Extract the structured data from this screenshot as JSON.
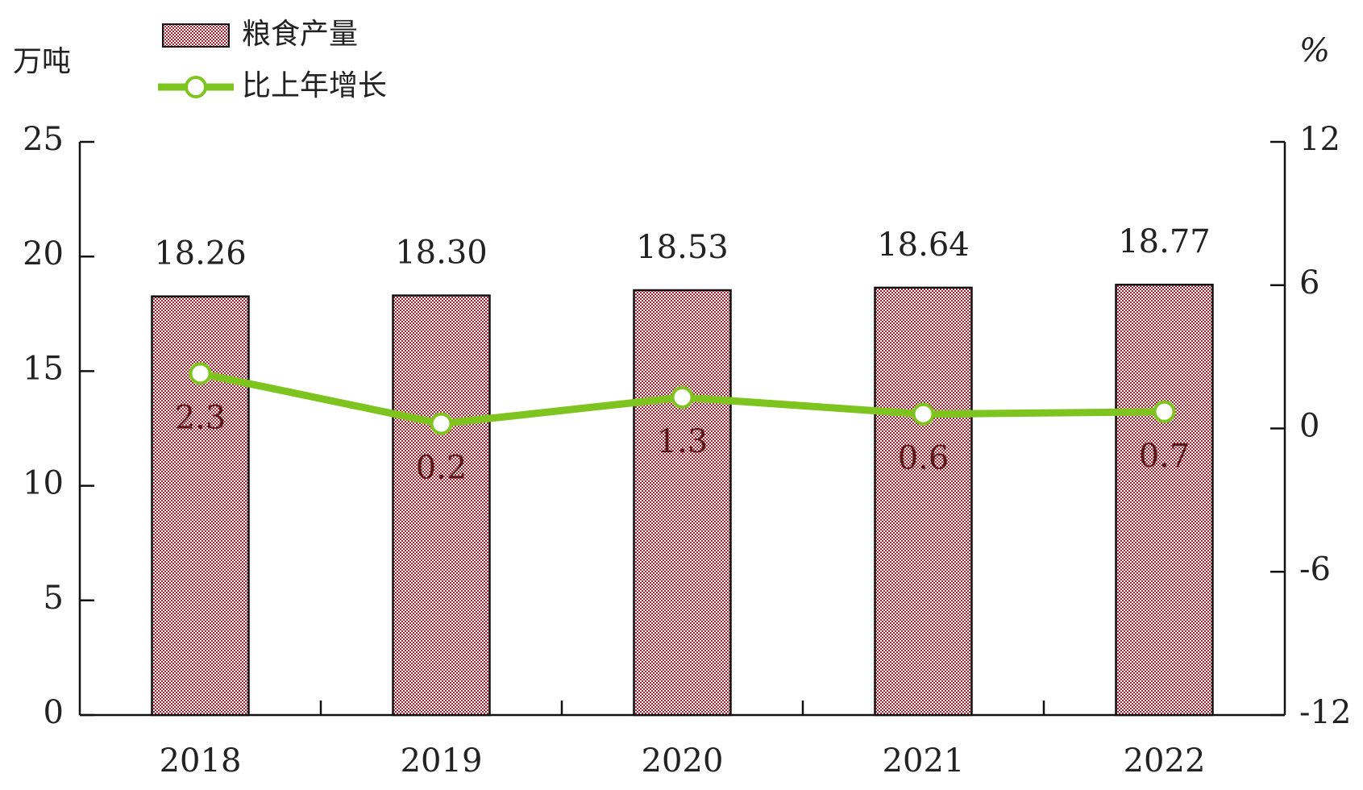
{
  "chart_data": {
    "type": "bar",
    "y_label": "万吨",
    "y2_label": "%",
    "categories": [
      "2018",
      "2019",
      "2020",
      "2021",
      "2022"
    ],
    "series": [
      {
        "name": "粮食产量",
        "type": "bar",
        "color": "#a3202c",
        "values": [
          18.26,
          18.3,
          18.53,
          18.64,
          18.77
        ],
        "value_labels": [
          "18.26",
          "18.30",
          "18.53",
          "18.64",
          "18.77"
        ]
      },
      {
        "name": "比上年增长",
        "type": "line",
        "axis": "y2",
        "color": "#7dc41f",
        "values": [
          2.3,
          0.2,
          1.3,
          0.6,
          0.7
        ]
      }
    ],
    "ylim": [
      0,
      25
    ],
    "yticks": [
      0,
      5,
      10,
      15,
      20,
      25
    ],
    "y2lim": [
      -12,
      12
    ],
    "y2ticks": [
      -12,
      -6,
      0,
      6,
      12
    ]
  }
}
